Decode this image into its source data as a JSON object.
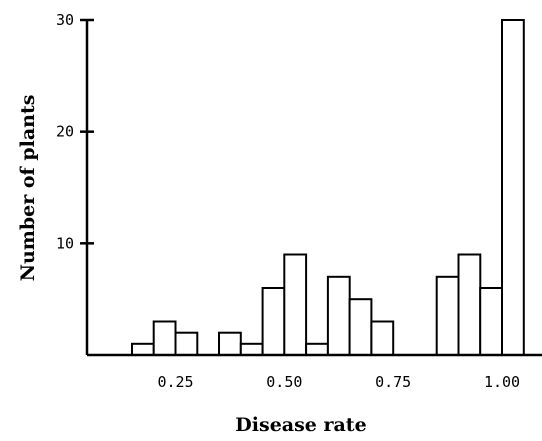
{
  "chart_data": {
    "type": "bar",
    "title": "",
    "xlabel": "Disease rate",
    "ylabel": "Number of plants",
    "x_ticks": [
      "0.25",
      "0.50",
      "0.75",
      "1.00"
    ],
    "y_ticks": [
      "10",
      "20",
      "30"
    ],
    "ylim": [
      0,
      30
    ],
    "bin_width": 0.05,
    "bins": [
      {
        "x": 0.175,
        "value": 1
      },
      {
        "x": 0.225,
        "value": 3
      },
      {
        "x": 0.275,
        "value": 2
      },
      {
        "x": 0.375,
        "value": 2
      },
      {
        "x": 0.425,
        "value": 1
      },
      {
        "x": 0.475,
        "value": 6
      },
      {
        "x": 0.525,
        "value": 9
      },
      {
        "x": 0.575,
        "value": 1
      },
      {
        "x": 0.625,
        "value": 7
      },
      {
        "x": 0.675,
        "value": 5
      },
      {
        "x": 0.725,
        "value": 3
      },
      {
        "x": 0.875,
        "value": 7
      },
      {
        "x": 0.925,
        "value": 9
      },
      {
        "x": 0.975,
        "value": 6
      },
      {
        "x": 1.025,
        "value": 30
      }
    ]
  }
}
